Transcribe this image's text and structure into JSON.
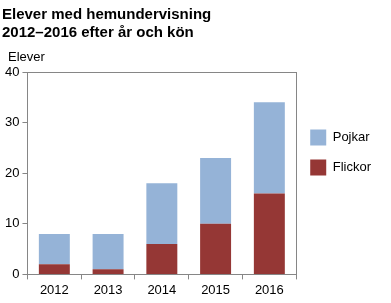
{
  "chart_data": {
    "type": "bar",
    "title": [
      "Elever med hemundervisning",
      "2012–2016 efter år och kön"
    ],
    "y_label": "Elever",
    "categories": [
      "2012",
      "2013",
      "2014",
      "2015",
      "2016"
    ],
    "series": [
      {
        "name": "Flickor",
        "color": "#953735",
        "values": [
          2,
          1,
          6,
          10,
          16
        ]
      },
      {
        "name": "Pojkar",
        "color": "#95b3d7",
        "values": [
          6,
          7,
          12,
          13,
          18
        ]
      }
    ],
    "stacked": true,
    "ylim": [
      0,
      40
    ],
    "yticks": [
      0,
      10,
      20,
      30,
      40
    ],
    "grid": false,
    "legend": "right"
  }
}
